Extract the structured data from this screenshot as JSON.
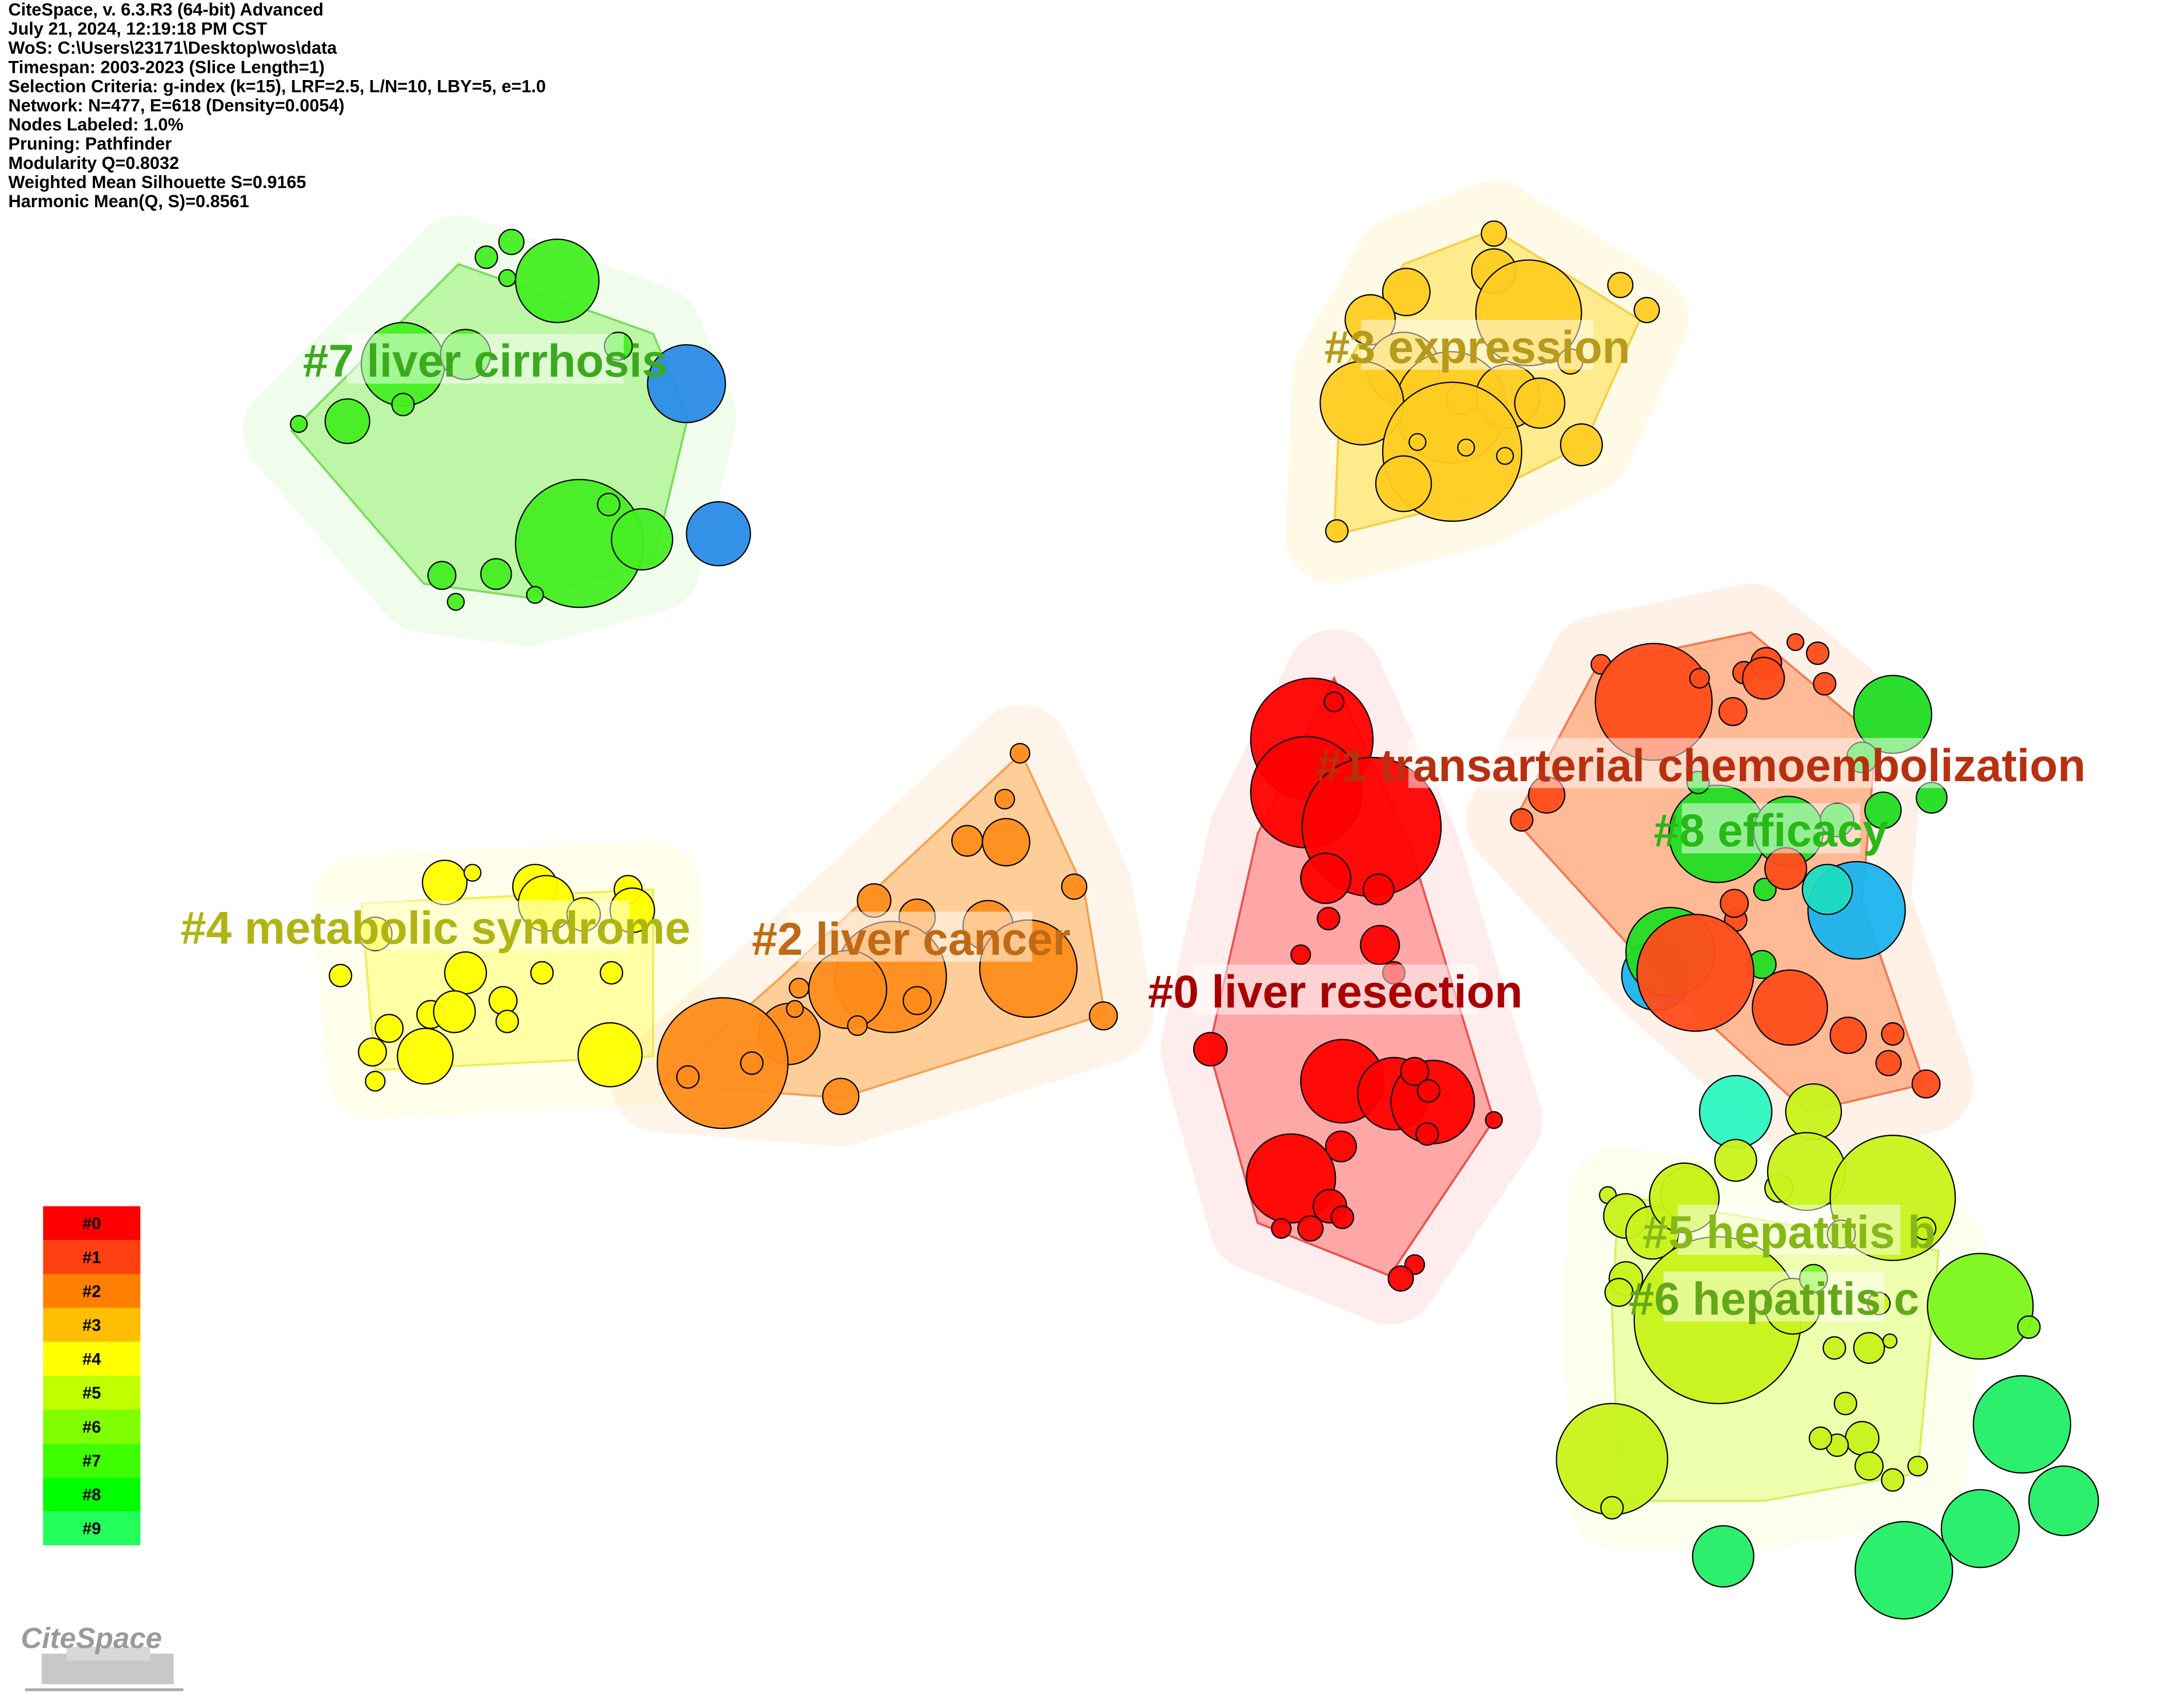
{
  "header": {
    "lines": [
      "CiteSpace, v. 6.3.R3 (64-bit) Advanced",
      "July 21, 2024, 12:19:18 PM CST",
      "WoS: C:\\Users\\23171\\Desktop\\wos\\data",
      "Timespan: 2003-2023 (Slice Length=1)",
      "Selection Criteria: g-index (k=15), LRF=2.5, L/N=10, LBY=5, e=1.0",
      "Network: N=477, E=618 (Density=0.0054)",
      "Nodes Labeled: 1.0%",
      "Pruning: Pathfinder",
      "Modularity Q=0.8032",
      "Weighted Mean Silhouette S=0.9165",
      "Harmonic Mean(Q, S)=0.8561"
    ]
  },
  "clusters": [
    {
      "label": "#0 liver resection"
    },
    {
      "label": "#1 transarterial chemoembolization"
    },
    {
      "label": "#2 liver cancer"
    },
    {
      "label": "#3 expression"
    },
    {
      "label": "#4 metabolic syndrome"
    },
    {
      "label": "#5 hepatitis b"
    },
    {
      "label": "#6 hepatitis c"
    },
    {
      "label": "#7 liver cirrhosis"
    },
    {
      "label": "#8 efficacy"
    }
  ],
  "legend": {
    "items": [
      "#0",
      "#1",
      "#2",
      "#3",
      "#4",
      "#5",
      "#6",
      "#7",
      "#8",
      "#9"
    ]
  },
  "logo": "CiteSpace"
}
